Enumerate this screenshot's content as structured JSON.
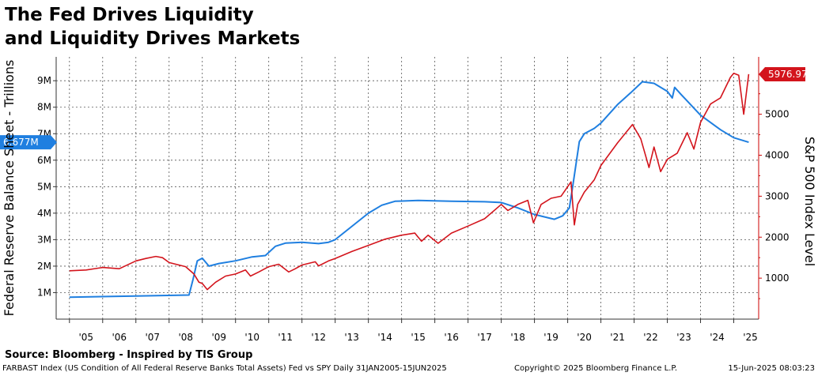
{
  "header": {
    "title_line1": "The Fed Drives Liquidity",
    "title_line2": "and Liquidity Drives Markets"
  },
  "footer": {
    "source": "Source: Bloomberg - Inspired by TIS Group",
    "description": "FARBAST Index (US Condition of All Federal Reserve Banks Total Assets) Fed vs SPY  Daily 31JAN2005-15JUN2025",
    "copyright": "Copyright© 2025 Bloomberg Finance L.P.",
    "timestamp": "15-Jun-2025 08:03:23"
  },
  "chart_data": {
    "type": "line",
    "ylabel_left": "Federal Reserve Balance Sheet - Trillions",
    "ylabel_right": "S&P 500 Index Level",
    "x_tick_labels": [
      "'05",
      "'06",
      "'07",
      "'08",
      "'09",
      "'10",
      "'11",
      "'12",
      "'13",
      "'14",
      "'15",
      "'16",
      "'17",
      "'18",
      "'19",
      "'20",
      "'21",
      "'22",
      "'23",
      "'24",
      "'25"
    ],
    "y_left": {
      "ticks": [
        "1M",
        "2M",
        "3M",
        "4M",
        "5M",
        "6M",
        "7M",
        "8M",
        "9M"
      ],
      "tick_values": [
        1,
        2,
        3,
        4,
        5,
        6,
        7,
        8,
        9
      ],
      "range": [
        0,
        9.9
      ]
    },
    "y_right": {
      "ticks": [
        "1000",
        "2000",
        "3000",
        "4000",
        "5000"
      ],
      "tick_values": [
        1000,
        2000,
        3000,
        4000,
        5000
      ],
      "range": [
        0,
        6400
      ]
    },
    "x_range": [
      2004.6,
      2025.75
    ],
    "grid": true,
    "colors": {
      "fed": "#1f7fe0",
      "spx": "#d3141c"
    },
    "fed_last_value_label": "6.677M",
    "spx_last_value_label": "5976.97",
    "series": [
      {
        "axis": "left",
        "color": "#1f7fe0",
        "points": [
          [
            2005.0,
            0.83
          ],
          [
            2007.0,
            0.87
          ],
          [
            2008.6,
            0.91
          ],
          [
            2008.72,
            1.5
          ],
          [
            2008.85,
            2.2
          ],
          [
            2009.0,
            2.3
          ],
          [
            2009.2,
            2.0
          ],
          [
            2009.5,
            2.1
          ],
          [
            2010.0,
            2.2
          ],
          [
            2010.5,
            2.35
          ],
          [
            2010.9,
            2.4
          ],
          [
            2011.2,
            2.75
          ],
          [
            2011.5,
            2.87
          ],
          [
            2012.0,
            2.9
          ],
          [
            2012.5,
            2.85
          ],
          [
            2012.8,
            2.9
          ],
          [
            2013.0,
            3.0
          ],
          [
            2013.5,
            3.5
          ],
          [
            2014.0,
            4.0
          ],
          [
            2014.4,
            4.3
          ],
          [
            2014.8,
            4.45
          ],
          [
            2015.5,
            4.48
          ],
          [
            2016.5,
            4.45
          ],
          [
            2017.5,
            4.43
          ],
          [
            2018.0,
            4.4
          ],
          [
            2018.5,
            4.2
          ],
          [
            2019.0,
            3.95
          ],
          [
            2019.6,
            3.77
          ],
          [
            2019.85,
            3.9
          ],
          [
            2020.05,
            4.2
          ],
          [
            2020.15,
            5.0
          ],
          [
            2020.35,
            6.7
          ],
          [
            2020.5,
            7.0
          ],
          [
            2020.8,
            7.2
          ],
          [
            2021.0,
            7.4
          ],
          [
            2021.5,
            8.1
          ],
          [
            2021.9,
            8.55
          ],
          [
            2022.25,
            8.96
          ],
          [
            2022.6,
            8.9
          ],
          [
            2023.0,
            8.6
          ],
          [
            2023.15,
            8.35
          ],
          [
            2023.22,
            8.75
          ],
          [
            2023.4,
            8.5
          ],
          [
            2024.0,
            7.7
          ],
          [
            2024.6,
            7.15
          ],
          [
            2025.0,
            6.85
          ],
          [
            2025.45,
            6.677
          ]
        ]
      },
      {
        "axis": "right",
        "color": "#d3141c",
        "points": [
          [
            2005.0,
            1180
          ],
          [
            2005.5,
            1200
          ],
          [
            2006.0,
            1260
          ],
          [
            2006.5,
            1230
          ],
          [
            2007.0,
            1420
          ],
          [
            2007.3,
            1480
          ],
          [
            2007.6,
            1530
          ],
          [
            2007.8,
            1500
          ],
          [
            2008.0,
            1380
          ],
          [
            2008.5,
            1280
          ],
          [
            2008.75,
            1100
          ],
          [
            2008.9,
            900
          ],
          [
            2009.0,
            870
          ],
          [
            2009.15,
            720
          ],
          [
            2009.4,
            900
          ],
          [
            2009.7,
            1050
          ],
          [
            2010.0,
            1100
          ],
          [
            2010.3,
            1200
          ],
          [
            2010.45,
            1050
          ],
          [
            2010.7,
            1150
          ],
          [
            2011.0,
            1280
          ],
          [
            2011.3,
            1340
          ],
          [
            2011.6,
            1150
          ],
          [
            2011.8,
            1230
          ],
          [
            2012.0,
            1320
          ],
          [
            2012.4,
            1400
          ],
          [
            2012.5,
            1300
          ],
          [
            2012.8,
            1420
          ],
          [
            2013.0,
            1480
          ],
          [
            2013.5,
            1650
          ],
          [
            2014.0,
            1800
          ],
          [
            2014.5,
            1950
          ],
          [
            2015.0,
            2050
          ],
          [
            2015.4,
            2100
          ],
          [
            2015.6,
            1900
          ],
          [
            2015.8,
            2050
          ],
          [
            2016.1,
            1850
          ],
          [
            2016.5,
            2100
          ],
          [
            2017.0,
            2270
          ],
          [
            2017.5,
            2450
          ],
          [
            2018.0,
            2800
          ],
          [
            2018.2,
            2650
          ],
          [
            2018.5,
            2800
          ],
          [
            2018.8,
            2900
          ],
          [
            2018.97,
            2350
          ],
          [
            2019.2,
            2800
          ],
          [
            2019.5,
            2950
          ],
          [
            2019.8,
            3000
          ],
          [
            2020.1,
            3350
          ],
          [
            2020.2,
            2300
          ],
          [
            2020.3,
            2800
          ],
          [
            2020.5,
            3100
          ],
          [
            2020.8,
            3400
          ],
          [
            2021.0,
            3750
          ],
          [
            2021.5,
            4300
          ],
          [
            2021.95,
            4750
          ],
          [
            2022.2,
            4400
          ],
          [
            2022.45,
            3700
          ],
          [
            2022.6,
            4200
          ],
          [
            2022.8,
            3600
          ],
          [
            2023.0,
            3900
          ],
          [
            2023.3,
            4050
          ],
          [
            2023.6,
            4550
          ],
          [
            2023.8,
            4150
          ],
          [
            2024.0,
            4800
          ],
          [
            2024.3,
            5250
          ],
          [
            2024.6,
            5400
          ],
          [
            2024.9,
            5900
          ],
          [
            2025.0,
            6000
          ],
          [
            2025.15,
            5950
          ],
          [
            2025.3,
            5000
          ],
          [
            2025.45,
            5976.97
          ]
        ]
      }
    ]
  }
}
